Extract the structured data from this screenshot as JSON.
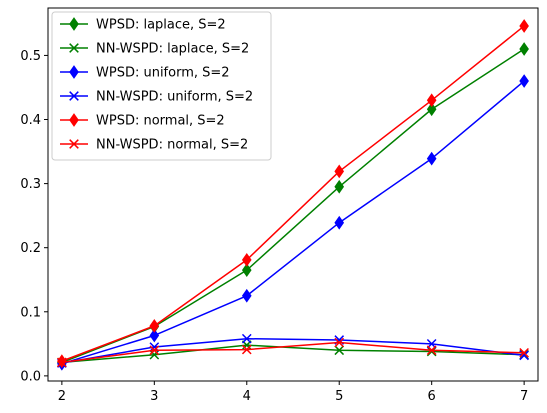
{
  "chart_data": {
    "type": "line",
    "title": "",
    "xlabel": "",
    "ylabel": "",
    "x": [
      2,
      3,
      4,
      5,
      6,
      7
    ],
    "xlim": [
      1.85,
      7.15
    ],
    "ylim": [
      -0.008,
      0.574
    ],
    "xticks": [
      "2",
      "3",
      "4",
      "5",
      "6",
      "7"
    ],
    "yticks": [
      "0.0",
      "0.1",
      "0.2",
      "0.3",
      "0.4",
      "0.5"
    ],
    "ytick_values": [
      0.0,
      0.1,
      0.2,
      0.3,
      0.4,
      0.5
    ],
    "grid": false,
    "legend_position": "top-left",
    "series": [
      {
        "name": "WPSD: laplace, S=2",
        "color": "#008000",
        "marker": "diamond",
        "values": [
          0.021,
          0.077,
          0.165,
          0.295,
          0.416,
          0.51
        ]
      },
      {
        "name": "NN-WSPD: laplace, S=2",
        "color": "#008000",
        "marker": "x",
        "values": [
          0.021,
          0.033,
          0.048,
          0.04,
          0.038,
          0.033
        ]
      },
      {
        "name": "WPSD: uniform, S=2",
        "color": "#0000ff",
        "marker": "diamond",
        "values": [
          0.019,
          0.063,
          0.125,
          0.239,
          0.339,
          0.46
        ]
      },
      {
        "name": "NN-WSPD: uniform, S=2",
        "color": "#0000ff",
        "marker": "x",
        "values": [
          0.02,
          0.045,
          0.058,
          0.056,
          0.05,
          0.032
        ]
      },
      {
        "name": "WPSD: normal, S=2",
        "color": "#ff0000",
        "marker": "diamond",
        "values": [
          0.023,
          0.078,
          0.181,
          0.319,
          0.43,
          0.546
        ]
      },
      {
        "name": "NN-WSPD: normal, S=2",
        "color": "#ff0000",
        "marker": "x",
        "values": [
          0.021,
          0.04,
          0.041,
          0.052,
          0.04,
          0.036
        ]
      }
    ]
  }
}
